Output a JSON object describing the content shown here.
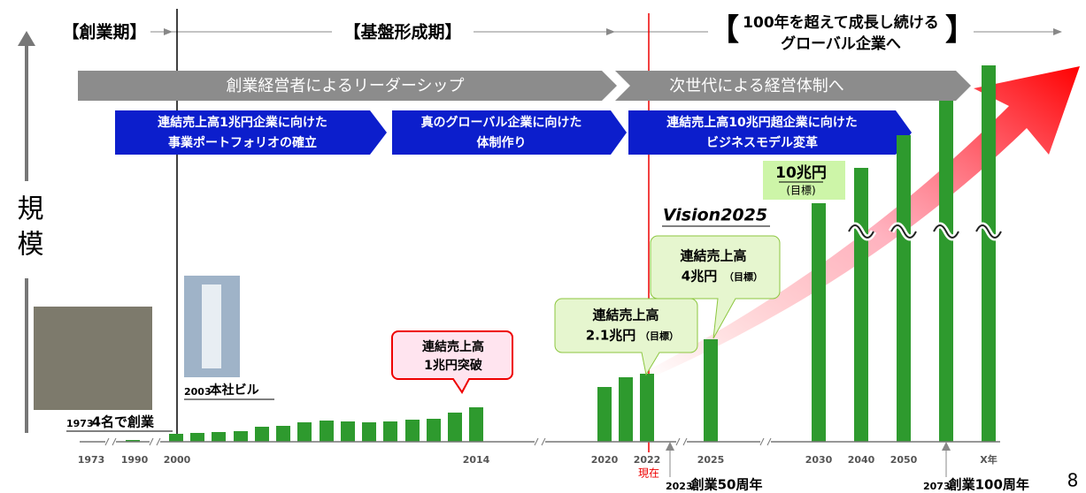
{
  "phases": {
    "founding": "【創業期】",
    "foundation": "【基盤形成期】",
    "future": {
      "open": "【",
      "lines": [
        "100年を超えて成長し続ける",
        "グローバル企業へ"
      ],
      "close": "】"
    }
  },
  "leadership": [
    "創業経営者によるリーダーシップ",
    "次世代による経営体制へ"
  ],
  "strategies": [
    [
      "連結売上高1兆円企業に向けた",
      "事業ポートフォリオの確立"
    ],
    [
      "真のグローバル企業に向けた",
      "体制作り"
    ],
    [
      "連結売上高10兆円超企業に向けた",
      "ビジネスモデル変革"
    ]
  ],
  "axis_label": "規模",
  "target_10": {
    "amount": "10兆円",
    "note": "(目標)"
  },
  "vision": "Vision2025",
  "callouts": {
    "four": [
      "連結売上高",
      "4兆円",
      "（目標）"
    ],
    "two": [
      "連結売上高",
      "2.1兆円",
      "（目標）"
    ],
    "one": [
      "連結売上高",
      "1兆円突破"
    ]
  },
  "milestones": {
    "founding": {
      "year": "1973",
      "text": "4名で創業"
    },
    "building": {
      "year": "2003",
      "text": "本社ビル"
    },
    "fifty": {
      "year": "2023",
      "text": "創業50周年"
    },
    "hundred": {
      "year": "2073",
      "text": "創業100周年"
    }
  },
  "years": [
    "1973",
    "1990",
    "2000",
    "2014",
    "2020",
    "2022",
    "2025",
    "2030",
    "2040",
    "2050",
    "X年"
  ],
  "now": "現在",
  "page": "8"
}
